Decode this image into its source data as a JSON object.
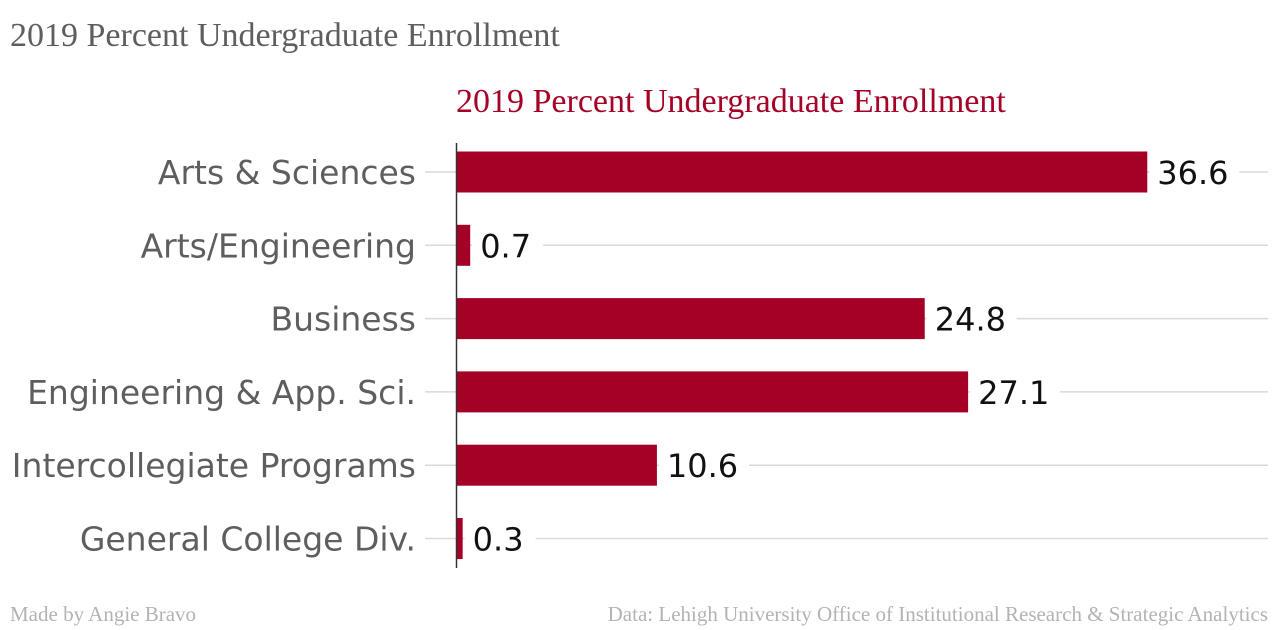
{
  "page_title": "2019 Percent Undergraduate Enrollment",
  "credit_left": "Made by Angie Bravo",
  "credit_right": "Data: Lehigh University Office of Institutional Research & Strategic Analytics",
  "colors": {
    "accent": "#a50026",
    "page_title": "#5e5e5e",
    "category_label": "#5e5e5e",
    "value_label": "#111111",
    "gridline": "#d9d9d9",
    "axis_line": "#333333",
    "credit": "#b3b3b3"
  },
  "chart_data": {
    "type": "bar",
    "orientation": "horizontal",
    "title": "2019 Percent Undergraduate Enrollment",
    "categories": [
      "Arts & Sciences",
      "Arts/Engineering",
      "Business",
      "Engineering & App. Sci.",
      "Intercollegiate Programs",
      "General College Div."
    ],
    "values": [
      36.6,
      0.7,
      24.8,
      27.1,
      10.6,
      0.3
    ],
    "value_labels": [
      "36.6",
      "0.7",
      "24.8",
      "27.1",
      "10.6",
      "0.3"
    ],
    "xlim": [
      0,
      43
    ],
    "grid": true,
    "legend": "none"
  }
}
